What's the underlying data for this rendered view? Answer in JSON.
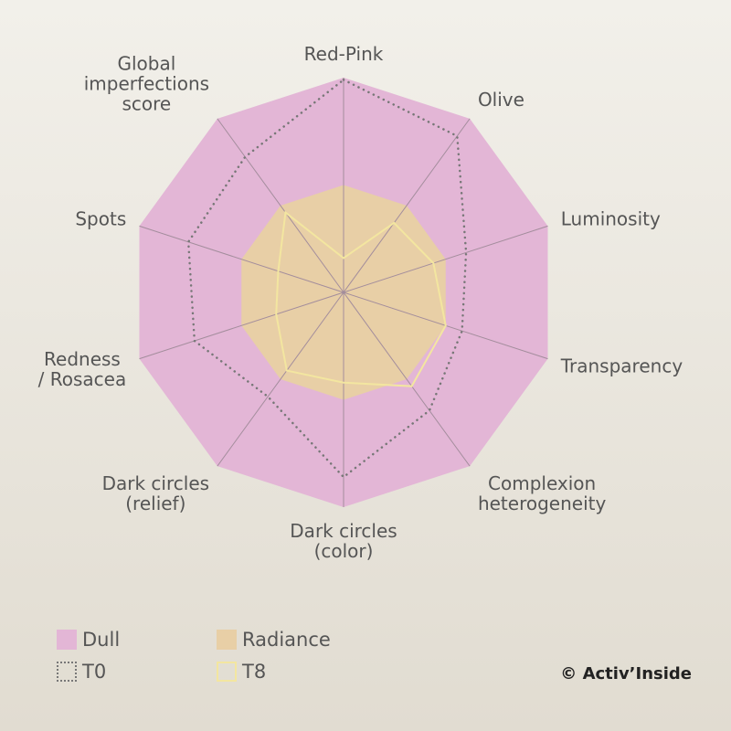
{
  "chart_data": {
    "type": "radar",
    "categories": [
      "Red-Pink",
      "Olive",
      "Luminosity",
      "Transparency",
      "Complexion\nheterogeneity",
      "Dark circles\n(color)",
      "Dark circles\n(relief)",
      "Redness\n/ Rosacea",
      "Spots",
      "Global\nimperfections\nscore"
    ],
    "rlim": [
      0,
      10
    ],
    "series": [
      {
        "name": "Dull",
        "color": "#e3b6d6",
        "style": "fill",
        "values": [
          10,
          10,
          10,
          10,
          10,
          10,
          10,
          10,
          10,
          10
        ]
      },
      {
        "name": "Radiance",
        "color": "#e8cfa6",
        "style": "fill",
        "values": [
          5,
          5,
          5,
          5,
          5,
          5,
          5,
          5,
          5,
          5
        ]
      },
      {
        "name": "T0",
        "color": "#777777",
        "style": "dotted",
        "values": [
          9.9,
          9.0,
          6.0,
          5.8,
          6.8,
          8.6,
          6.0,
          7.3,
          7.6,
          7.8
        ]
      },
      {
        "name": "T8",
        "color": "#f3e6a0",
        "style": "line",
        "values": [
          1.6,
          4.0,
          4.4,
          5.0,
          5.4,
          4.2,
          4.5,
          3.3,
          3.2,
          4.6
        ]
      }
    ],
    "credit": "© Activ’Inside"
  }
}
